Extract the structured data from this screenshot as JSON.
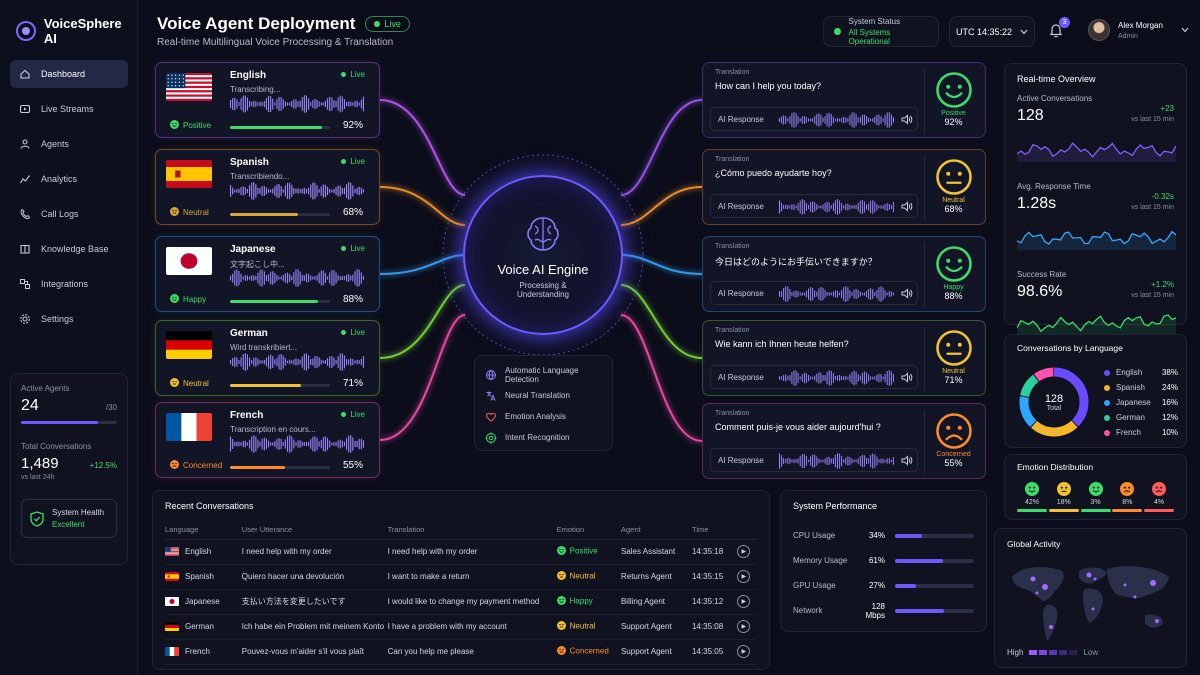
{
  "app": {
    "name": "VoiceSphere AI"
  },
  "nav": [
    {
      "label": "Dashboard",
      "icon": "home-icon",
      "active": true
    },
    {
      "label": "Live Streams",
      "icon": "live-stream-icon"
    },
    {
      "label": "Agents",
      "icon": "agents-icon"
    },
    {
      "label": "Analytics",
      "icon": "analytics-icon"
    },
    {
      "label": "Call Logs",
      "icon": "phone-icon"
    },
    {
      "label": "Knowledge Base",
      "icon": "book-icon"
    },
    {
      "label": "Integrations",
      "icon": "integrations-icon"
    },
    {
      "label": "Settings",
      "icon": "gear-icon"
    }
  ],
  "side": {
    "active_agents_label": "Active Agents",
    "active_agents": "24",
    "active_agents_total": "/30",
    "active_agents_fraction": 0.8,
    "total_conv_label": "Total Conversations",
    "total_conv": "1,489",
    "total_conv_delta": "+12.5%",
    "total_conv_sub": "vs last 24h",
    "health_label": "System Health",
    "health_value": "Excellent"
  },
  "header": {
    "title": "Voice Agent Deployment",
    "live": "Live",
    "subtitle": "Real-time Multilingual Voice Processing & Translation",
    "status_label": "System Status",
    "status_value": "All Systems Operational",
    "clock": "UTC 14:35:22",
    "notifications": "3",
    "user_name": "Alex Morgan",
    "user_role": "Admin"
  },
  "languages": [
    {
      "name": "English",
      "live": "Live",
      "status": "Transcribing...",
      "sentiment": "Positive",
      "confidence": "92%",
      "conf_fraction": 0.92,
      "color": "#3ddc6a",
      "flag": "us",
      "line": "#c05cff"
    },
    {
      "name": "Spanish",
      "live": "Live",
      "status": "Transcribiendo...",
      "sentiment": "Neutral",
      "confidence": "68%",
      "conf_fraction": 0.68,
      "color": "#d9a43a",
      "flag": "es",
      "line": "#ff9a2a"
    },
    {
      "name": "Japanese",
      "live": "Live",
      "status": "文字起こし中...",
      "sentiment": "Happy",
      "confidence": "88%",
      "conf_fraction": 0.88,
      "color": "#3ddc6a",
      "flag": "jp",
      "line": "#3aa8ff"
    },
    {
      "name": "German",
      "live": "Live",
      "status": "Wird transkribiert...",
      "sentiment": "Neutral",
      "confidence": "71%",
      "conf_fraction": 0.71,
      "color": "#f2c230",
      "flag": "de",
      "line": "#7de03a"
    },
    {
      "name": "French",
      "live": "Live",
      "status": "Transcription en cours...",
      "sentiment": "Concerned",
      "confidence": "55%",
      "conf_fraction": 0.55,
      "color": "#ff8a2a",
      "flag": "fr",
      "line": "#ff4fb0"
    }
  ],
  "engine": {
    "title": "Voice AI Engine",
    "subtitle": "Processing & Understanding"
  },
  "features": [
    {
      "label": "Automatic Language Detection",
      "icon": "globe-icon"
    },
    {
      "label": "Neural Translation",
      "icon": "translate-icon"
    },
    {
      "label": "Emotion Analysis",
      "icon": "heart-icon"
    },
    {
      "label": "Intent Recognition",
      "icon": "target-icon"
    }
  ],
  "translations": [
    {
      "label": "Translation",
      "text": "How can I help you today?",
      "resp": "AI Response",
      "emotion": "Positive",
      "value": "92%",
      "color": "#3ddc6a",
      "face": "happy"
    },
    {
      "label": "Translation",
      "text": "¿Cómo puedo ayudarte hoy?",
      "resp": "AI Response",
      "emotion": "Neutral",
      "value": "68%",
      "color": "#f2c230",
      "face": "neutral"
    },
    {
      "label": "Translation",
      "text": "今日はどのようにお手伝いできますか？",
      "resp": "AI Response",
      "emotion": "Happy",
      "value": "88%",
      "color": "#3ddc6a",
      "face": "happy"
    },
    {
      "label": "Translation",
      "text": "Wie kann ich Ihnen heute helfen?",
      "resp": "AI Response",
      "emotion": "Neutral",
      "value": "71%",
      "color": "#f2c230",
      "face": "neutral"
    },
    {
      "label": "Translation",
      "text": "Comment puis-je vous aider aujourd'hui ?",
      "resp": "AI Response",
      "emotion": "Concerned",
      "value": "55%",
      "color": "#ff8a2a",
      "face": "sad"
    }
  ],
  "overview": {
    "title": "Real-time Overview",
    "rows": [
      {
        "name": "Active Conversations",
        "value": "128",
        "delta": "+23",
        "sub": "vs last 15 min",
        "delta_color": "#3ddc6a",
        "line": "#8a5bff"
      },
      {
        "name": "Avg. Response Time",
        "value": "1.28s",
        "delta": "-0.32s",
        "sub": "vs last 15 min",
        "delta_color": "#3ddc6a",
        "line": "#3aa8ff"
      },
      {
        "name": "Success Rate",
        "value": "98.6%",
        "delta": "+1.2%",
        "sub": "vs last 15 min",
        "delta_color": "#3ddc6a",
        "line": "#3ddc6a"
      }
    ]
  },
  "by_language": {
    "title": "Conversations by Language",
    "total": "128",
    "total_label": "Total",
    "items": [
      {
        "name": "English",
        "pct": "38%",
        "value": 38,
        "color": "#6b4bff"
      },
      {
        "name": "Spanish",
        "pct": "24%",
        "value": 24,
        "color": "#f2b72a"
      },
      {
        "name": "Japanese",
        "pct": "16%",
        "value": 16,
        "color": "#2aa8ff"
      },
      {
        "name": "German",
        "pct": "12%",
        "value": 12,
        "color": "#2ad0a0"
      },
      {
        "name": "French",
        "pct": "10%",
        "value": 10,
        "color": "#ff4fb0"
      }
    ]
  },
  "emotions": {
    "title": "Emotion Distribution",
    "items": [
      {
        "pct": "42%",
        "color": "#3ddc6a",
        "face": "happy"
      },
      {
        "pct": "18%",
        "color": "#f2c230",
        "face": "neutral"
      },
      {
        "pct": "3%",
        "color": "#3ddc6a",
        "face": "happy"
      },
      {
        "pct": "8%",
        "color": "#ff8a2a",
        "face": "sad"
      },
      {
        "pct": "4%",
        "color": "#ff5a5a",
        "face": "angry"
      }
    ]
  },
  "global": {
    "title": "Global Activity",
    "high": "High",
    "low": "Low"
  },
  "recent": {
    "title": "Recent Conversations",
    "columns": [
      "Language",
      "User Utterance",
      "Translation",
      "Emotion",
      "Agent",
      "Time"
    ],
    "rows": [
      {
        "lang": "English",
        "flag": "us",
        "utterance": "I need help with my order",
        "translation": "I need help with my order",
        "emotion": "Positive",
        "emotion_color": "#3ddc6a",
        "agent": "Sales Assistant",
        "time": "14:35:18"
      },
      {
        "lang": "Spanish",
        "flag": "es",
        "utterance": "Quiero hacer una devolución",
        "translation": "I want to make a return",
        "emotion": "Neutral",
        "emotion_color": "#f2c230",
        "agent": "Returns Agent",
        "time": "14:35:15"
      },
      {
        "lang": "Japanese",
        "flag": "jp",
        "utterance": "支払い方法を変更したいです",
        "translation": "I would like to change my payment method",
        "emotion": "Happy",
        "emotion_color": "#3ddc6a",
        "agent": "Billing Agent",
        "time": "14:35:12"
      },
      {
        "lang": "German",
        "flag": "de",
        "utterance": "Ich habe ein Problem mit meinem Konto",
        "translation": "I have a problem with my account",
        "emotion": "Neutral",
        "emotion_color": "#f2c230",
        "agent": "Support Agent",
        "time": "14:35:08"
      },
      {
        "lang": "French",
        "flag": "fr",
        "utterance": "Pouvez-vous m'aider s'il vous plaît",
        "translation": "Can you help me please",
        "emotion": "Concerned",
        "emotion_color": "#ff8a2a",
        "agent": "Support Agent",
        "time": "14:35:05"
      }
    ]
  },
  "performance": {
    "title": "System Performance",
    "rows": [
      {
        "name": "CPU Usage",
        "value": "34%",
        "fraction": 0.34
      },
      {
        "name": "Memory Usage",
        "value": "61%",
        "fraction": 0.61
      },
      {
        "name": "GPU Usage",
        "value": "27%",
        "fraction": 0.27
      },
      {
        "name": "Network",
        "value": "128 Mbps",
        "fraction": 0.62
      }
    ]
  }
}
